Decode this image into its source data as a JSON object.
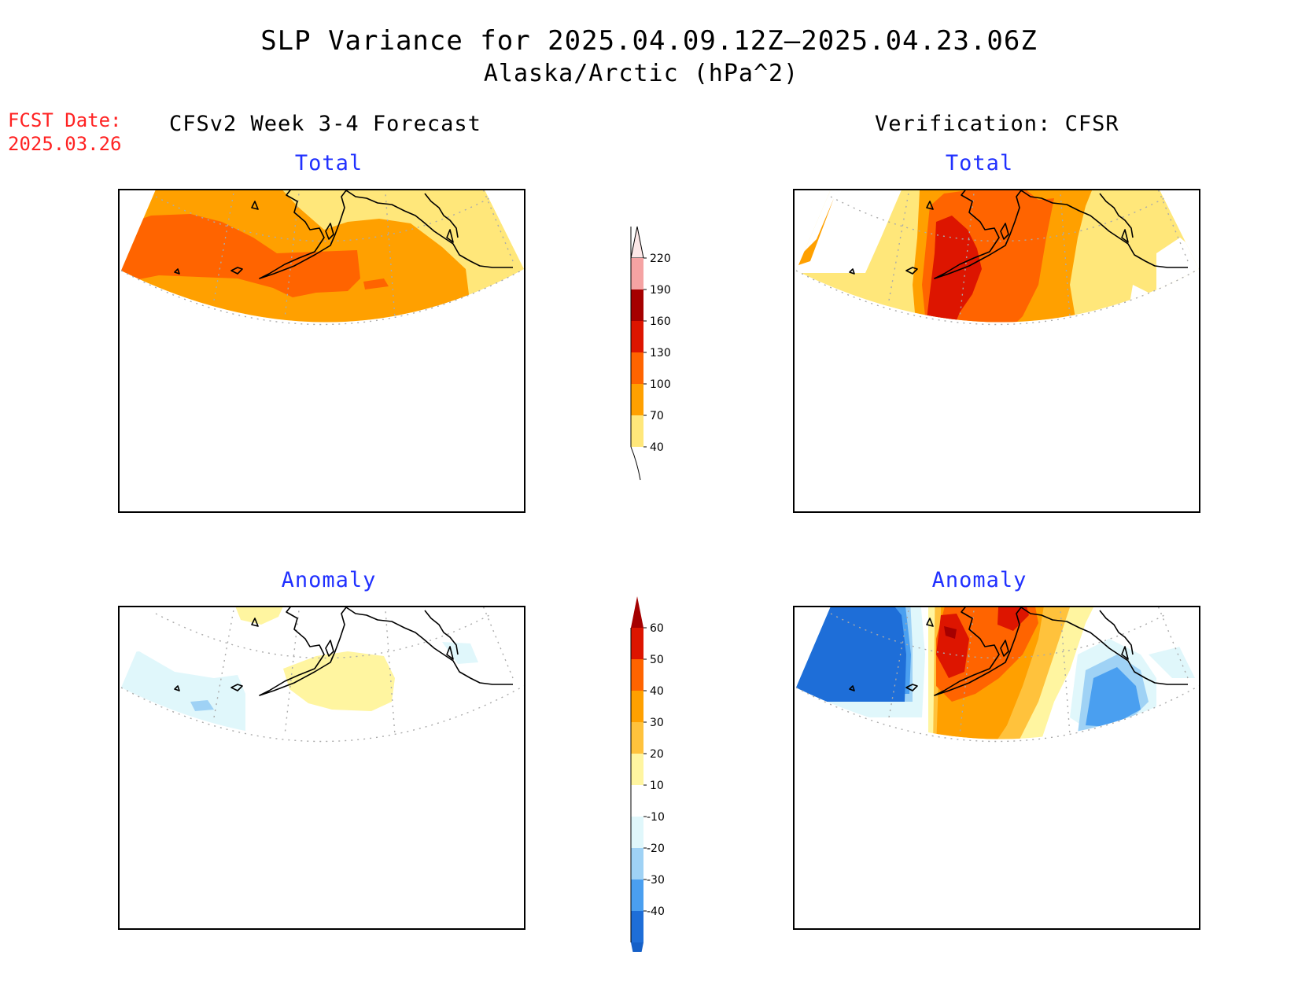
{
  "header": {
    "title": "SLP Variance for 2025.04.09.12Z—2025.04.23.06Z",
    "subtitle": "Alaska/Arctic (hPa^2)",
    "fcst_date": "FCST Date:\n2025.03.26"
  },
  "columns": {
    "left": "CFSv2 Week 3-4 Forecast",
    "right": "Verification: CFSR"
  },
  "panels": {
    "fcst_total": "Total",
    "verif_total": "Total",
    "fcst_anom": "Anomaly",
    "verif_anom": "Anomaly"
  },
  "colorbars": {
    "total": {
      "labels": [
        "220",
        "190",
        "160",
        "130",
        "100",
        "70",
        "40"
      ],
      "colors": [
        "#f5a3a3",
        "#a50000",
        "#dd1500",
        "#ff6400",
        "#ffa000",
        "#ffe77a"
      ],
      "top_color": "#fde8e8"
    },
    "anomaly": {
      "labels": [
        "60",
        "50",
        "40",
        "30",
        "20",
        "10",
        "-10",
        "-20",
        "-30",
        "-40"
      ],
      "colors": [
        "#dd1500",
        "#ff6400",
        "#ffa000",
        "#ffc23c",
        "#fff5a0",
        "#ffffff",
        "#e0f7fb",
        "#9fd2f5",
        "#4a9ff0",
        "#1e6ed8"
      ],
      "top_color": "#a50000",
      "bottom_color": "#1560c8"
    }
  }
}
